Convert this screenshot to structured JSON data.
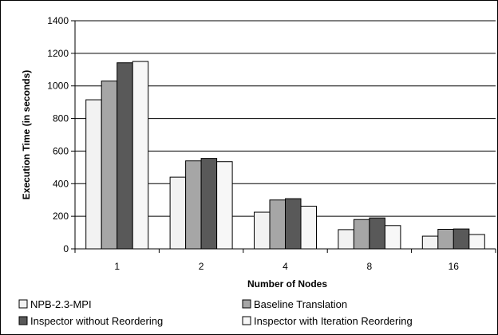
{
  "chart_data": {
    "type": "bar",
    "xlabel": "Number of Nodes",
    "ylabel": "Execution Time (in seconds)",
    "categories": [
      "1",
      "2",
      "4",
      "8",
      "16"
    ],
    "ylim": [
      0,
      1400
    ],
    "yticks": [
      0,
      200,
      400,
      600,
      800,
      1000,
      1200,
      1400
    ],
    "grid": true,
    "legend_position": "bottom",
    "series": [
      {
        "name": "NPB-2.3-MPI",
        "values": [
          915,
          440,
          225,
          118,
          78
        ],
        "color": "#f2f2f2"
      },
      {
        "name": "Baseline Translation",
        "values": [
          1030,
          540,
          300,
          180,
          120
        ],
        "color": "#a6a6a6"
      },
      {
        "name": "Inspector without Reordering",
        "values": [
          1142,
          555,
          308,
          190,
          122
        ],
        "color": "#595959"
      },
      {
        "name": "Inspector with Iteration Reordering",
        "values": [
          1150,
          535,
          262,
          143,
          88
        ],
        "color": "#f7f7f7"
      }
    ]
  }
}
